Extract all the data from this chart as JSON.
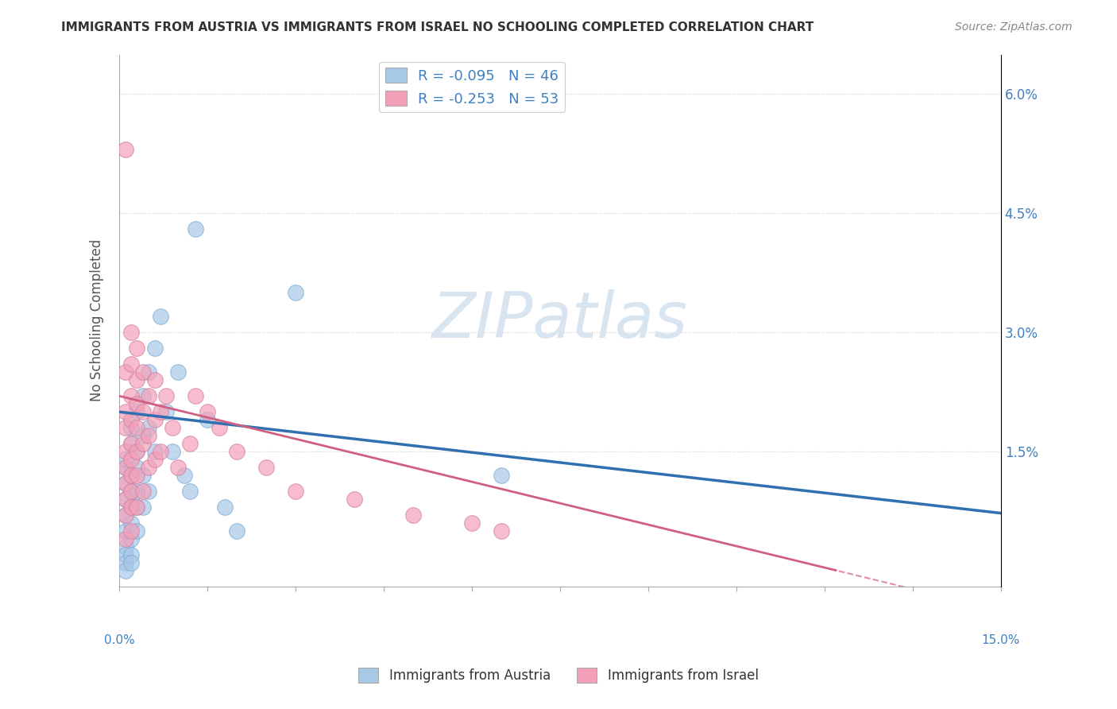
{
  "title": "IMMIGRANTS FROM AUSTRIA VS IMMIGRANTS FROM ISRAEL NO SCHOOLING COMPLETED CORRELATION CHART",
  "source": "Source: ZipAtlas.com",
  "ylabel": "No Schooling Completed",
  "y_ticks": [
    0.0,
    0.015,
    0.03,
    0.045,
    0.06
  ],
  "y_tick_labels": [
    "",
    "1.5%",
    "3.0%",
    "4.5%",
    "6.0%"
  ],
  "x_min": 0.0,
  "x_max": 0.15,
  "y_min": -0.002,
  "y_max": 0.065,
  "austria_R": -0.095,
  "austria_N": 46,
  "israel_R": -0.253,
  "israel_N": 53,
  "austria_color": "#a8c8e8",
  "israel_color": "#f4a0b8",
  "austria_line_color": "#3070b0",
  "israel_line_color": "#d06080",
  "watermark_text": "ZIPatlas",
  "watermark_color": "#d8e4f0",
  "background_color": "#ffffff",
  "grid_color": "#cccccc",
  "title_color": "#333333",
  "source_color": "#888888",
  "axis_label_color": "#555555",
  "tick_label_color": "#4080c0"
}
